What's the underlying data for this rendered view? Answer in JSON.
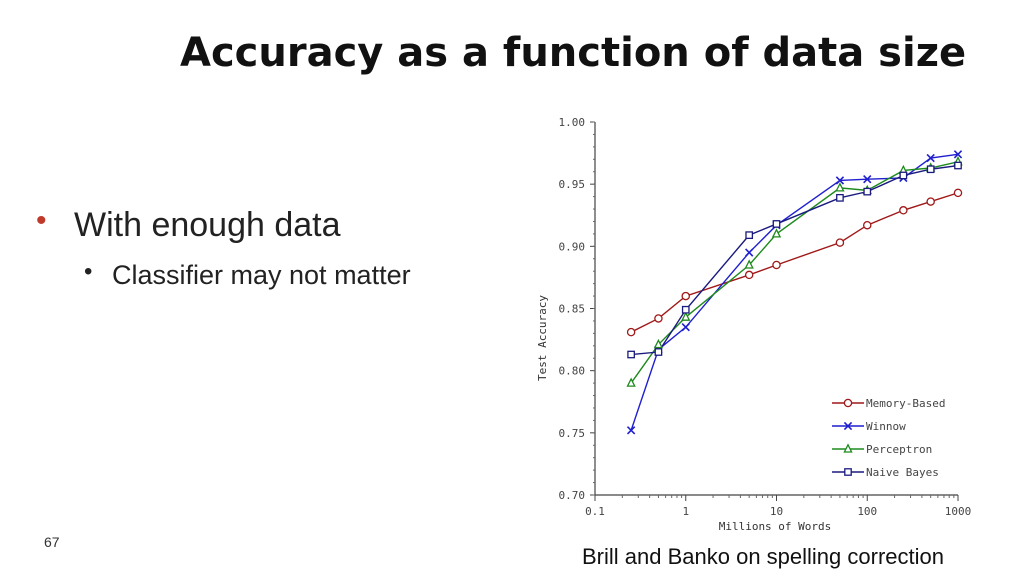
{
  "slide": {
    "title": "Accuracy as a function of data size",
    "bullets": [
      {
        "text": "With enough data"
      },
      {
        "text": "Classifier may not matter"
      }
    ],
    "page_number": "67",
    "caption": "Brill and Banko on spelling correction",
    "bullet_color": "#c0392b"
  },
  "chart_data": {
    "type": "line",
    "title": "",
    "xlabel": "Millions of Words",
    "ylabel": "Test Accuracy",
    "xscale": "log",
    "xlim": [
      0.1,
      1000
    ],
    "ylim": [
      0.7,
      1.0
    ],
    "xticks": [
      0.1,
      1,
      10,
      100,
      1000
    ],
    "xtick_labels": [
      "0.1",
      "1",
      "10",
      "100",
      "1000"
    ],
    "yticks": [
      0.7,
      0.75,
      0.8,
      0.85,
      0.9,
      0.95,
      1.0
    ],
    "ytick_labels": [
      "0.70",
      "0.75",
      "0.80",
      "0.85",
      "0.90",
      "0.95",
      "1.00"
    ],
    "grid": false,
    "legend_position": "bottom-right",
    "x": [
      0.25,
      0.5,
      1,
      5,
      10,
      50,
      100,
      250,
      500,
      1000
    ],
    "series": [
      {
        "name": "Memory-Based",
        "color": "#a01818",
        "marker": "circle",
        "values": [
          0.831,
          0.842,
          0.86,
          0.877,
          0.885,
          0.903,
          0.917,
          0.929,
          0.936,
          0.943
        ]
      },
      {
        "name": "Winnow",
        "color": "#1f1fd0",
        "marker": "x",
        "values": [
          0.752,
          0.817,
          0.835,
          0.895,
          0.917,
          0.953,
          0.954,
          0.955,
          0.971,
          0.974
        ]
      },
      {
        "name": "Perceptron",
        "color": "#1e8a1e",
        "marker": "triangle",
        "values": [
          0.79,
          0.821,
          0.843,
          0.885,
          0.91,
          0.947,
          0.945,
          0.961,
          0.963,
          0.968
        ]
      },
      {
        "name": "Naive Bayes",
        "color": "#1a1a80",
        "marker": "square",
        "values": [
          0.813,
          0.815,
          0.849,
          0.909,
          0.918,
          0.939,
          0.944,
          0.957,
          0.962,
          0.965
        ]
      }
    ]
  }
}
